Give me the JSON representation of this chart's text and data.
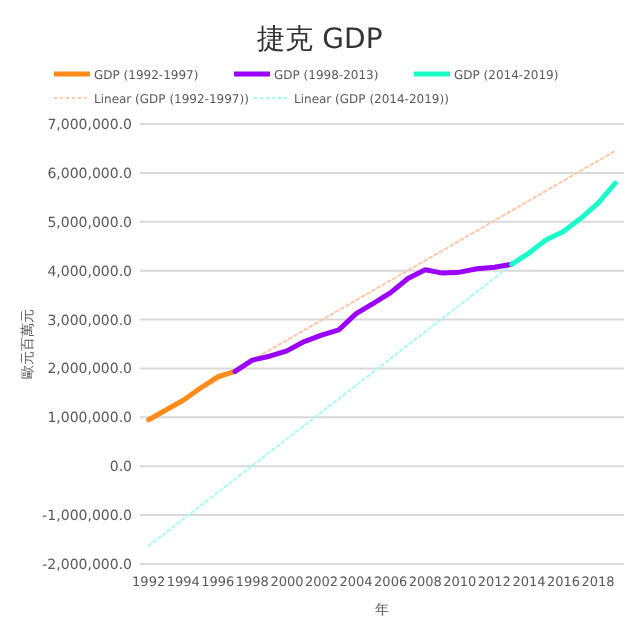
{
  "chart_data": {
    "type": "line",
    "title": "捷克 GDP",
    "xlabel": "年",
    "ylabel": "歐元百萬元",
    "categories": [
      "1992",
      null,
      "1994",
      null,
      "1996",
      null,
      "1998",
      null,
      "2000",
      null,
      "2002",
      null,
      "2004",
      null,
      "2006",
      null,
      "2008",
      null,
      "2010",
      null,
      "2012",
      null,
      "2014",
      null,
      "2016",
      null,
      "2018",
      null
    ],
    "series": [
      {
        "name": "GDP (1992-1997)",
        "color": "#ff8c1a",
        "line_style": "solid",
        "values": [
          950000.0,
          1150000.0,
          1350000.0,
          1600000.0,
          1830000.0,
          1940000.0,
          null,
          null,
          null,
          null,
          null,
          null,
          null,
          null,
          null,
          null,
          null,
          null,
          null,
          null,
          null,
          null,
          null,
          null,
          null,
          null,
          null,
          null
        ]
      },
      {
        "name": "GDP (1998-2013)",
        "color": "#9b00ff",
        "line_style": "solid",
        "values": [
          null,
          null,
          null,
          null,
          null,
          1940000.0,
          2170000.0,
          2250000.0,
          2360000.0,
          2550000.0,
          2680000.0,
          2790000.0,
          3120000.0,
          3330000.0,
          3550000.0,
          3840000.0,
          4020000.0,
          3950000.0,
          3970000.0,
          4040000.0,
          4070000.0,
          4130000.0,
          null,
          null,
          null,
          null,
          null,
          null
        ]
      },
      {
        "name": "GDP (2014-2019)",
        "color": "#1affc8",
        "line_style": "solid",
        "values": [
          null,
          null,
          null,
          null,
          null,
          null,
          null,
          null,
          null,
          null,
          null,
          null,
          null,
          null,
          null,
          null,
          null,
          null,
          null,
          null,
          null,
          4130000.0,
          4360000.0,
          4630000.0,
          4800000.0,
          5070000.0,
          5380000.0,
          5790000.0
        ]
      },
      {
        "name": "Linear (GDP (1992-1997))",
        "color": "#ffc8a8",
        "line_style": "dotted",
        "values": [
          950000.0,
          null,
          null,
          null,
          null,
          null,
          null,
          null,
          null,
          null,
          null,
          null,
          null,
          null,
          null,
          null,
          null,
          null,
          null,
          null,
          null,
          null,
          null,
          null,
          null,
          null,
          null,
          6450000.0
        ]
      },
      {
        "name": "Linear (GDP (2014-2019))",
        "color": "#a8ffe8",
        "line_style": "dotted",
        "values": [
          -1630000.0,
          null,
          null,
          null,
          null,
          null,
          null,
          null,
          null,
          null,
          null,
          null,
          null,
          null,
          null,
          null,
          null,
          null,
          null,
          null,
          null,
          4120000.0,
          null,
          null,
          null,
          null,
          null,
          null
        ]
      }
    ],
    "ylim": [
      -2000000,
      7000000
    ],
    "yticks": [
      {
        "value": -2000000,
        "label": "-2,000,000.0"
      },
      {
        "value": -1000000,
        "label": "-1,000,000.0"
      },
      {
        "value": 0,
        "label": "0.0"
      },
      {
        "value": 1000000,
        "label": "1,000,000.0"
      },
      {
        "value": 2000000,
        "label": "2,000,000.0"
      },
      {
        "value": 3000000,
        "label": "3,000,000.0"
      },
      {
        "value": 4000000,
        "label": "4,000,000.0"
      },
      {
        "value": 5000000,
        "label": "5,000,000.0"
      },
      {
        "value": 6000000,
        "label": "6,000,000.0"
      },
      {
        "value": 7000000,
        "label": "7,000,000.0"
      }
    ],
    "grid": "y",
    "legend": "top",
    "marker": "none"
  }
}
